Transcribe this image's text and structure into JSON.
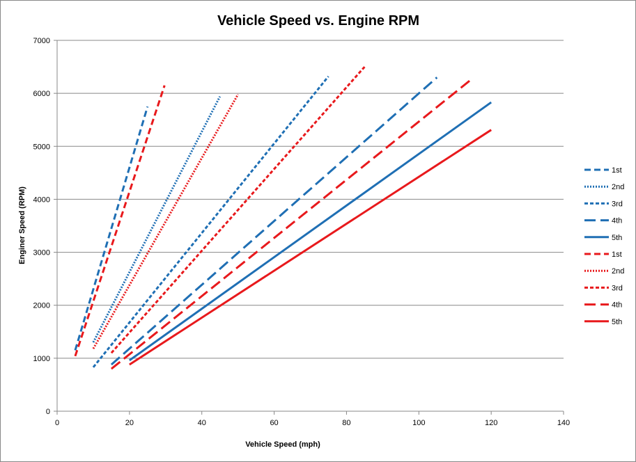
{
  "chart_data": {
    "type": "line",
    "title": "Vehicle Speed vs. Engine RPM",
    "xlabel": "Vehicle Speed (mph)",
    "ylabel": "Enginer Speed (RPM)",
    "xlim": [
      0,
      140
    ],
    "ylim": [
      0,
      7000
    ],
    "xticks": [
      0,
      20,
      40,
      60,
      80,
      100,
      120,
      140
    ],
    "yticks": [
      0,
      1000,
      2000,
      3000,
      4000,
      5000,
      6000,
      7000
    ],
    "grid": "horizontal",
    "legend_position": "right",
    "series": [
      {
        "name": "1st",
        "color": "#1f6fb4",
        "dash": "dash",
        "x": [
          5,
          25
        ],
        "y": [
          1150,
          5750
        ]
      },
      {
        "name": "2nd",
        "color": "#1f6fb4",
        "dash": "dot",
        "x": [
          10,
          45
        ],
        "y": [
          1300,
          5940
        ]
      },
      {
        "name": "3rd",
        "color": "#1f6fb4",
        "dash": "shortdash",
        "x": [
          10,
          75
        ],
        "y": [
          830,
          6320
        ]
      },
      {
        "name": "4th",
        "color": "#1f6fb4",
        "dash": "longdash",
        "x": [
          15,
          105
        ],
        "y": [
          880,
          6300
        ]
      },
      {
        "name": "5th",
        "color": "#1f6fb4",
        "dash": "solid",
        "x": [
          20,
          120
        ],
        "y": [
          960,
          5830
        ]
      },
      {
        "name": "1st",
        "color": "#e8191c",
        "dash": "dash",
        "x": [
          5,
          29.7
        ],
        "y": [
          1040,
          6150
        ]
      },
      {
        "name": "2nd",
        "color": "#e8191c",
        "dash": "dot",
        "x": [
          10,
          50
        ],
        "y": [
          1180,
          5980
        ]
      },
      {
        "name": "3rd",
        "color": "#e8191c",
        "dash": "shortdash",
        "x": [
          15,
          85
        ],
        "y": [
          1100,
          6500
        ]
      },
      {
        "name": "4th",
        "color": "#e8191c",
        "dash": "longdash",
        "x": [
          15,
          115
        ],
        "y": [
          800,
          6290
        ]
      },
      {
        "name": "5th",
        "color": "#e8191c",
        "dash": "solid",
        "x": [
          20,
          120
        ],
        "y": [
          880,
          5310
        ]
      }
    ]
  }
}
